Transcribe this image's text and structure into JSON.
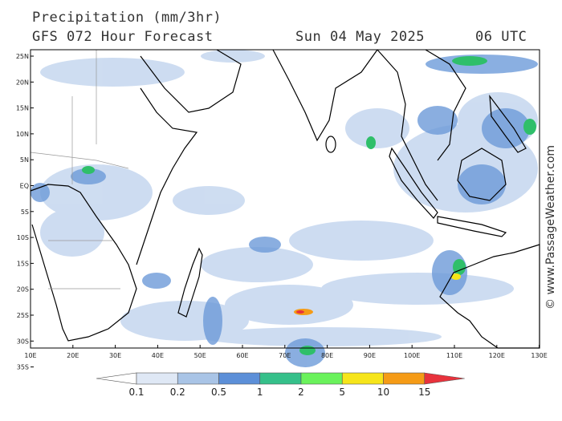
{
  "header": {
    "title": "Precipitation (mm/3hr)",
    "subtitle": "GFS 072 Hour Forecast",
    "date": "Sun 04 May 2025",
    "time": "06 UTC"
  },
  "copyright": "© www.PassageWeather.com",
  "axes": {
    "lat_labels": [
      "25N",
      "20N",
      "15N",
      "10N",
      "5N",
      "EQ",
      "5S",
      "10S",
      "15S",
      "20S",
      "25S",
      "30S",
      "35S"
    ],
    "lon_labels": [
      "10E",
      "20E",
      "30E",
      "40E",
      "50E",
      "60E",
      "70E",
      "80E",
      "90E",
      "100E",
      "110E",
      "120E",
      "130E"
    ]
  },
  "colorbar": {
    "labels": [
      "0.1",
      "0.2",
      "0.5",
      "1",
      "2",
      "5",
      "10",
      "15"
    ],
    "colors": [
      "#ffffff",
      "#dfe8f5",
      "#a9c4e6",
      "#5c8fd8",
      "#35c08a",
      "#6af25b",
      "#f6e51a",
      "#f59b16",
      "#e8323c"
    ]
  },
  "map": {
    "land_color": "#ffffff",
    "ocean_color": "#ffffff",
    "precip_light": "#c5d7ef",
    "precip_medium": "#6d9bd9",
    "precip_heavy": "#2fbf6a"
  }
}
